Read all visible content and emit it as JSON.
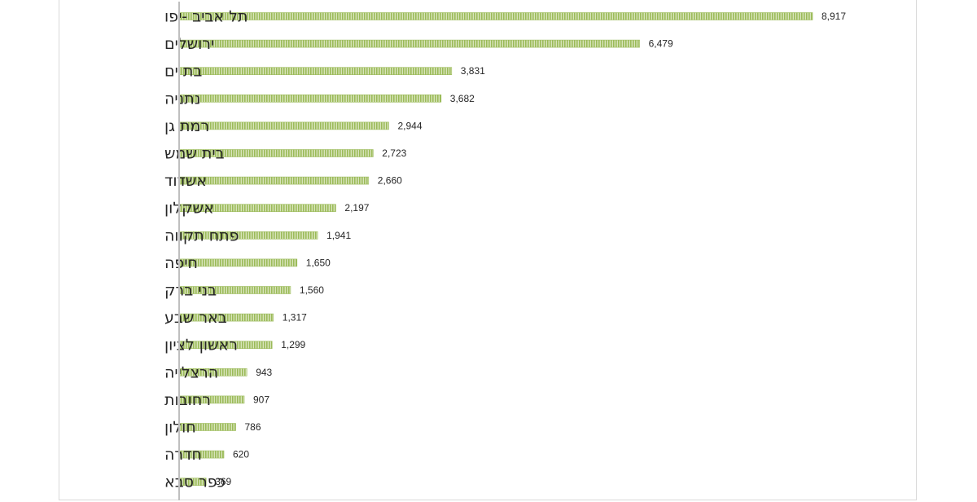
{
  "chart_data": {
    "type": "bar",
    "orientation": "horizontal",
    "categories": [
      "תל אביב -יפו",
      "ירושלים",
      "בת ים",
      "נתניה",
      "רמת גן",
      "בית שמש",
      "אשדוד",
      "אשקלון",
      "פתח תקווה",
      "חיפה",
      "בני ברק",
      "באר שבע",
      "ראשון לציון",
      "הרצלייה",
      "רחובות",
      "חולון",
      "חדרה",
      "כפר סבא"
    ],
    "values": [
      8917,
      6479,
      3831,
      3682,
      2944,
      2723,
      2660,
      2197,
      1941,
      1650,
      1560,
      1317,
      1299,
      943,
      907,
      786,
      620,
      369
    ],
    "value_labels": [
      "8,917",
      "6,479",
      "3,831",
      "3,682",
      "2,944",
      "2,723",
      "2,660",
      "2,197",
      "1,941",
      "1,650",
      "1,560",
      "1,317",
      "1,299",
      "943",
      "907",
      "786",
      "620",
      "369"
    ],
    "title": "",
    "xlabel": "",
    "ylabel": "",
    "xlim": [
      0,
      9000
    ],
    "grid": false,
    "legend": "none",
    "bar_color": "#9bbb59",
    "bar_pattern": "vertical-stripes",
    "axis_color": "#bfbfbf"
  }
}
